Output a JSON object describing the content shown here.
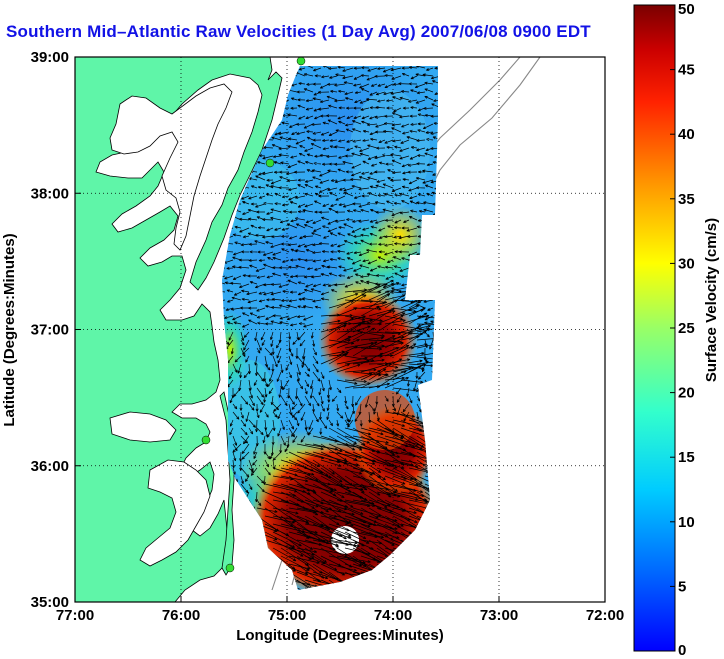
{
  "title": "Southern Mid–Atlantic Raw Velocities (1 Day Avg) 2007/06/08 0900 EDT",
  "map": {
    "xlabel": "Longitude (Degrees:Minutes)",
    "ylabel": "Latitude (Degrees:Minutes)",
    "x_ticks": [
      "77:00",
      "76:00",
      "75:00",
      "74:00",
      "73:00",
      "72:00"
    ],
    "y_ticks": [
      "39:00",
      "38:00",
      "37:00",
      "36:00",
      "35:00"
    ],
    "lon_range": [
      -77,
      -72
    ],
    "lat_range": [
      35,
      39
    ],
    "grid": "dotted",
    "land_color": "#5ff5a8",
    "water_color": "#ffffff"
  },
  "colorbar": {
    "label": "Surface Velocity (cm/s)",
    "min": 0,
    "max": 50,
    "ticks": [
      "50",
      "45",
      "40",
      "35",
      "30",
      "25",
      "20",
      "15",
      "10",
      "5",
      "0"
    ],
    "colormap": "jet"
  }
}
